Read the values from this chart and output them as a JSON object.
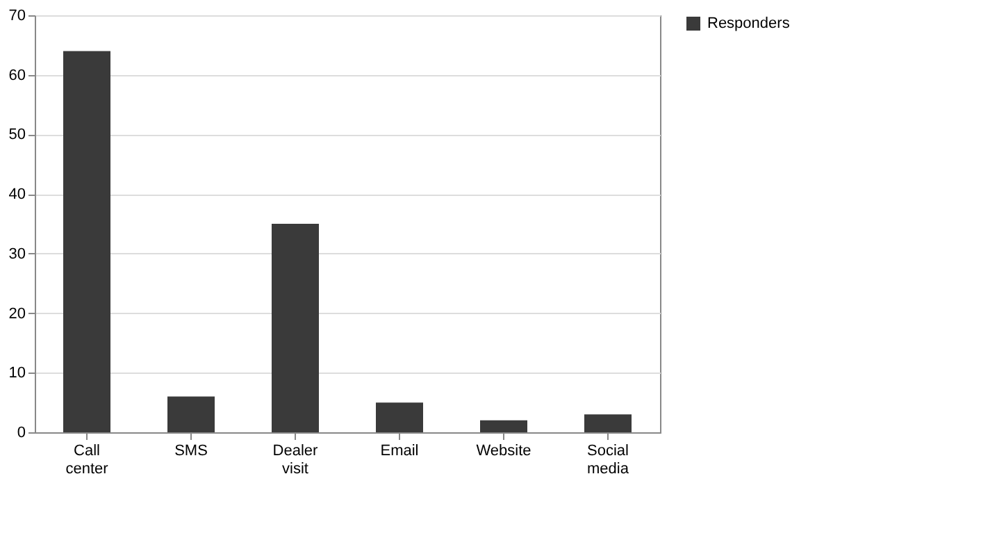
{
  "chart_data": {
    "type": "bar",
    "categories": [
      "Call center",
      "SMS",
      "Dealer visit",
      "Email",
      "Website",
      "Social media"
    ],
    "series": [
      {
        "name": "Responders",
        "color": "#3a3a3a",
        "values": [
          64,
          6,
          35,
          5,
          2,
          3
        ]
      }
    ],
    "ylim": [
      0,
      70
    ],
    "yticks": [
      0,
      10,
      20,
      30,
      40,
      50,
      60,
      70
    ],
    "grid": "y",
    "legend": "right"
  }
}
